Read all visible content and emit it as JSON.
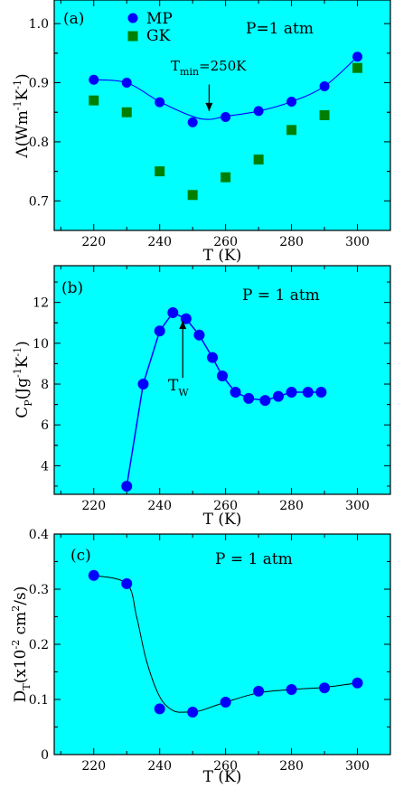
{
  "colors": {
    "background": "#00ffff",
    "line": "#0000ff",
    "mp_marker": "#0000ff",
    "gk_marker": "#008000"
  },
  "chart_data": [
    {
      "type": "line",
      "panel_label": "(a)",
      "pressure_note": "P=1 atm",
      "ylabel_main": "Λ(Wm",
      "ylabel_sup1": "-1",
      "ylabel_mid": "K",
      "ylabel_sup2": "-1",
      "ylabel_end": ")",
      "xlabel": "T (K)",
      "xlim": [
        208,
        310
      ],
      "ylim": [
        0.65,
        1.04
      ],
      "xticks": [
        220,
        240,
        260,
        280,
        300
      ],
      "yticks": [
        0.7,
        0.8,
        0.9,
        1.0
      ],
      "ytick_labels": [
        "0.7",
        "0.8",
        "0.9",
        "1.0"
      ],
      "legend": [
        {
          "name": "MP",
          "marker": "circle"
        },
        {
          "name": "GK",
          "marker": "square"
        }
      ],
      "series": [
        {
          "name": "MP",
          "marker": "circle",
          "x": [
            220,
            230,
            240,
            250,
            260,
            270,
            280,
            290,
            300
          ],
          "values": [
            0.905,
            0.9,
            0.867,
            0.833,
            0.842,
            0.852,
            0.868,
            0.894,
            0.944
          ]
        },
        {
          "name": "GK",
          "marker": "square",
          "x": [
            220,
            230,
            240,
            250,
            260,
            270,
            280,
            290,
            300
          ],
          "values": [
            0.87,
            0.85,
            0.75,
            0.71,
            0.74,
            0.77,
            0.82,
            0.845,
            0.925
          ]
        }
      ],
      "fit_line": {
        "x": [
          220,
          230,
          240,
          250,
          255,
          260,
          270,
          280,
          290,
          300
        ],
        "values": [
          0.905,
          0.9,
          0.868,
          0.843,
          0.838,
          0.843,
          0.852,
          0.868,
          0.894,
          0.944
        ]
      },
      "annotation": {
        "text_main": "T",
        "text_sub": "min",
        "text_rest": "=250K",
        "arrow_x": 255,
        "arrow_from": 0.897,
        "arrow_to": 0.852,
        "text_x": 248,
        "text_y": 0.91
      }
    },
    {
      "type": "line",
      "panel_label": "(b)",
      "pressure_note": "P = 1 atm",
      "ylabel_main": "C",
      "ylabel_sub": "P",
      "ylabel_rest": "(Jg",
      "ylabel_sup1": "-1",
      "ylabel_mid": "K",
      "ylabel_sup2": "-1",
      "ylabel_end": ")",
      "xlabel": "T (K)",
      "xlim": [
        208,
        310
      ],
      "ylim": [
        2.6,
        13.8
      ],
      "xticks": [
        220,
        240,
        260,
        280,
        300
      ],
      "yticks": [
        4,
        6,
        8,
        10,
        12
      ],
      "ytick_labels": [
        "4",
        "6",
        "8",
        "10",
        "12"
      ],
      "series": [
        {
          "name": "MP",
          "marker": "circle",
          "x": [
            230,
            235,
            240,
            244,
            248,
            252,
            256,
            259,
            263,
            267,
            272,
            276,
            280,
            285,
            289
          ],
          "values": [
            3.0,
            8.0,
            10.6,
            11.5,
            11.2,
            10.4,
            9.3,
            8.4,
            7.6,
            7.3,
            7.2,
            7.4,
            7.6,
            7.6,
            7.6
          ]
        }
      ],
      "annotation": {
        "text_main": "T",
        "text_sub": "W",
        "arrow_x": 247,
        "arrow_from": 8.3,
        "arrow_to": 11.1,
        "text_x": 240,
        "text_y": 7.0
      }
    },
    {
      "type": "line",
      "panel_label": "(c)",
      "pressure_note": "P = 1 atm",
      "ylabel_main": "D",
      "ylabel_sub": "T",
      "ylabel_rest": "(x10",
      "ylabel_sup1": "-2",
      "ylabel_mid": " cm",
      "ylabel_sup2": "2",
      "ylabel_end": "/s)",
      "xlabel": "T (K)",
      "xlim": [
        208,
        310
      ],
      "ylim": [
        0.0,
        0.4
      ],
      "xticks": [
        220,
        240,
        260,
        280,
        300
      ],
      "yticks": [
        0,
        0.1,
        0.2,
        0.3,
        0.4
      ],
      "ytick_labels": [
        "0",
        "0.1",
        "0.2",
        "0.3",
        "0.4"
      ],
      "series": [
        {
          "name": "MP",
          "marker": "circle",
          "x": [
            220,
            230,
            240,
            250,
            260,
            270,
            280,
            290,
            300
          ],
          "values": [
            0.325,
            0.31,
            0.083,
            0.077,
            0.095,
            0.115,
            0.118,
            0.121,
            0.13
          ]
        }
      ],
      "fit_line": {
        "x": [
          220,
          230,
          233,
          236,
          240,
          244,
          248,
          252,
          256,
          260,
          270,
          280,
          290,
          300
        ],
        "values": [
          0.325,
          0.31,
          0.25,
          0.17,
          0.105,
          0.08,
          0.077,
          0.079,
          0.087,
          0.095,
          0.112,
          0.118,
          0.122,
          0.13
        ]
      }
    }
  ]
}
